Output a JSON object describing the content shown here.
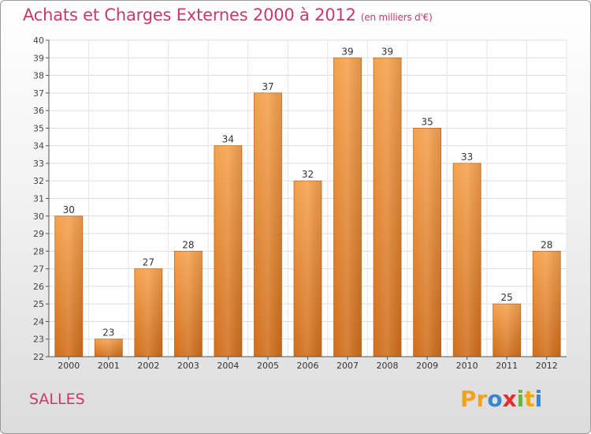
{
  "header": {
    "title": "Achats et Charges Externes 2000 à 2012",
    "subtitle": "(en milliers d'€)"
  },
  "footer": {
    "commune": "SALLES",
    "logo_letters": [
      "P",
      "r",
      "o",
      "x",
      "i",
      "t",
      "i"
    ],
    "logo_colors": [
      "#f4a21e",
      "#f4a21e",
      "#3a86d1",
      "#e0302e",
      "#6cb43f",
      "#f4a21e",
      "#3a86d1"
    ]
  },
  "chart_data": {
    "type": "bar",
    "categories": [
      "2000",
      "2001",
      "2002",
      "2003",
      "2004",
      "2005",
      "2006",
      "2007",
      "2008",
      "2009",
      "2010",
      "2011",
      "2012"
    ],
    "values": [
      30,
      23,
      27,
      28,
      34,
      37,
      32,
      39,
      39,
      35,
      33,
      25,
      28
    ],
    "title": "Achats et Charges Externes 2000 à 2012",
    "xlabel": "",
    "ylabel": "",
    "ylim": [
      22,
      40
    ],
    "yticks": [
      22,
      23,
      24,
      25,
      26,
      27,
      28,
      29,
      30,
      31,
      32,
      33,
      34,
      35,
      36,
      37,
      38,
      39,
      40
    ],
    "grid": true,
    "bar_color": "#f19433"
  }
}
